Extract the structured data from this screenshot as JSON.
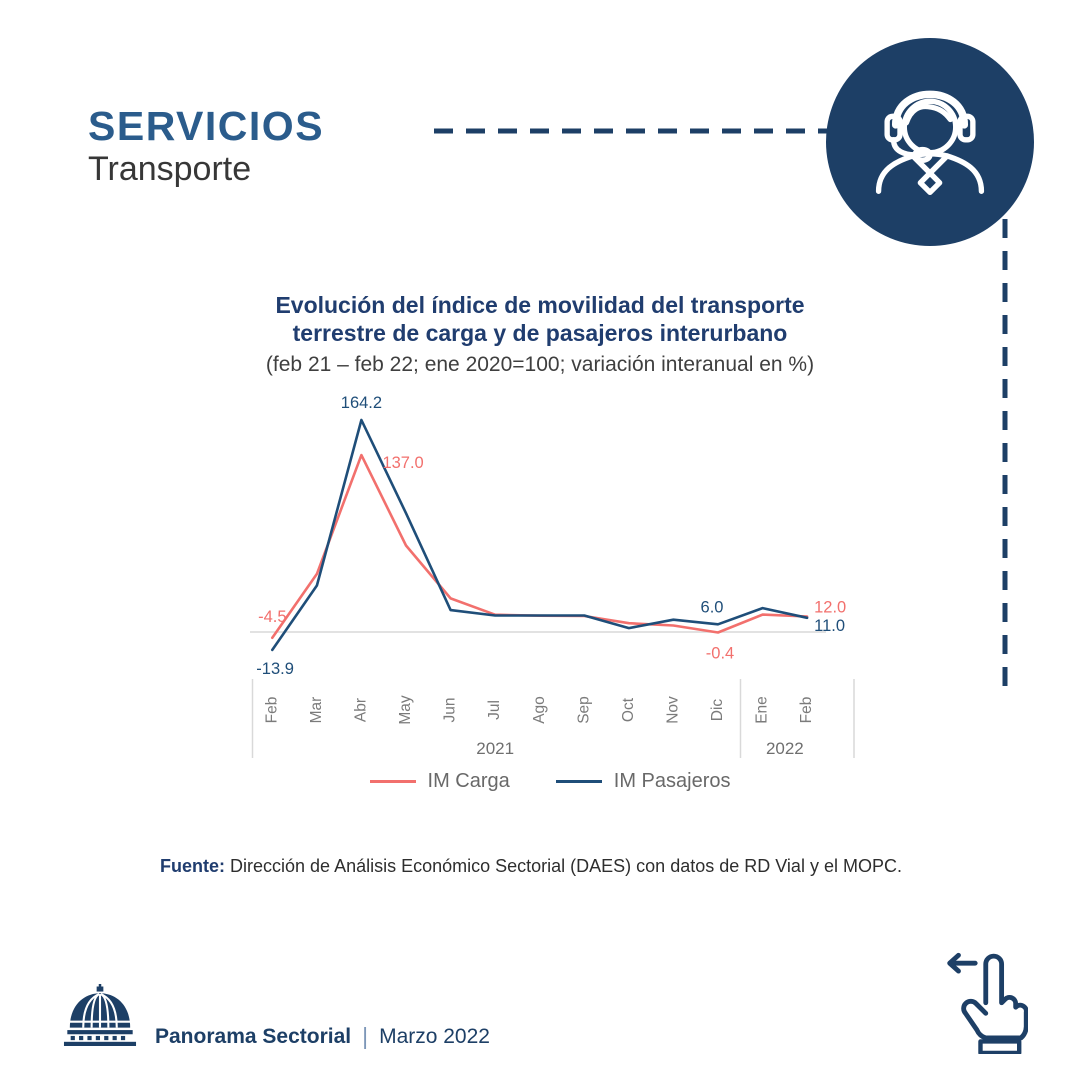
{
  "header": {
    "title": "SERVICIOS",
    "subtitle": "Transporte"
  },
  "hero_icon": {
    "name": "headset-agent-icon",
    "background": "#1d3f66"
  },
  "chart_data": {
    "type": "line",
    "title": "Evolución del índice de movilidad del transporte terrestre de carga y de pasajeros interurbano",
    "title_lines": [
      "Evolución del índice de movilidad del transporte",
      "terrestre de carga y de pasajeros interurbano"
    ],
    "subtitle": "(feb 21 – feb 22; ene 2020=100; variación interanual en %)",
    "categories": [
      "Feb",
      "Mar",
      "Abr",
      "May",
      "Jun",
      "Jul",
      "Ago",
      "Sep",
      "Oct",
      "Nov",
      "Dic",
      "Ene",
      "Feb"
    ],
    "year_groups": [
      {
        "label": "2021",
        "from": 0,
        "to": 10
      },
      {
        "label": "2022",
        "from": 11,
        "to": 12
      }
    ],
    "series": [
      {
        "name": "IM Carga",
        "color": "#f2706d",
        "values": [
          -4.5,
          45.0,
          137.0,
          67.0,
          26.0,
          13.4,
          12.6,
          12.4,
          6.8,
          5.0,
          -0.4,
          13.5,
          12.0
        ]
      },
      {
        "name": "IM Pasajeros",
        "color": "#1f4e79",
        "values": [
          -13.9,
          36.0,
          164.2,
          92.0,
          17.0,
          12.8,
          12.8,
          12.8,
          3.0,
          9.5,
          6.0,
          18.5,
          11.0
        ]
      }
    ],
    "point_labels": [
      {
        "series": 0,
        "index": 0,
        "text": "-4.5"
      },
      {
        "series": 0,
        "index": 2,
        "text": "137.0"
      },
      {
        "series": 0,
        "index": 10,
        "text": "-0.4"
      },
      {
        "series": 0,
        "index": 12,
        "text": "12.0"
      },
      {
        "series": 1,
        "index": 0,
        "text": "-13.9"
      },
      {
        "series": 1,
        "index": 2,
        "text": "164.2"
      },
      {
        "series": 1,
        "index": 10,
        "text": "6.0"
      },
      {
        "series": 1,
        "index": 12,
        "text": "11.0"
      }
    ],
    "baseline_value": 0,
    "grid": false,
    "legend_position": "bottom"
  },
  "source": {
    "label": "Fuente:",
    "text": "Dirección de Análisis Económico Sectorial (DAES) con datos de RD Vial y el MOPC."
  },
  "footer": {
    "brand": "Panorama Sectorial",
    "separator": "|",
    "issue": "Marzo 2022"
  },
  "colors": {
    "navy": "#1d3f66",
    "header_blue": "#2b5c8c",
    "title_blue": "#203d6f",
    "carga_red": "#f2706d",
    "pasajeros_blue": "#1f4e79",
    "axis_gray": "#7b7b7b",
    "separator_gray": "#d9d9d9",
    "legend_gray": "#696969"
  }
}
